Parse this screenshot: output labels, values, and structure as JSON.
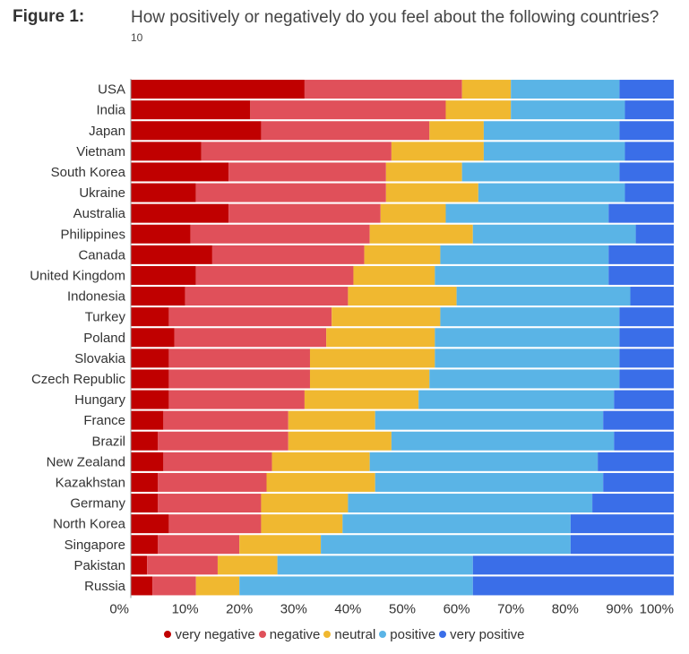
{
  "figure": {
    "label": "Figure 1:",
    "title": "How positively or negatively do you feel about the following countries?",
    "footnote": "10"
  },
  "chart_data": {
    "type": "bar",
    "orientation": "horizontal",
    "stacked": true,
    "normalized": true,
    "xlim": [
      0,
      100
    ],
    "x_ticks": [
      "0%",
      "10%",
      "20%",
      "30%",
      "40%",
      "50%",
      "60%",
      "70%",
      "80%",
      "90%",
      "100%"
    ],
    "legend_position": "bottom",
    "categories": [
      "USA",
      "India",
      "Japan",
      "Vietnam",
      "South Korea",
      "Ukraine",
      "Australia",
      "Philippines",
      "Canada",
      "United Kingdom",
      "Indonesia",
      "Turkey",
      "Poland",
      "Slovakia",
      "Czech Republic",
      "Hungary",
      "France",
      "Brazil",
      "New Zealand",
      "Kazakhstan",
      "Germany",
      "North Korea",
      "Singapore",
      "Pakistan",
      "Russia"
    ],
    "series": [
      {
        "name": "very negative",
        "color": "#c00000",
        "values": [
          32,
          22,
          24,
          13,
          18,
          12,
          18,
          11,
          15,
          12,
          10,
          7,
          8,
          7,
          7,
          7,
          6,
          5,
          6,
          5,
          5,
          7,
          5,
          3,
          4
        ]
      },
      {
        "name": "negative",
        "color": "#e0505a",
        "values": [
          29,
          36,
          31,
          35,
          29,
          35,
          28,
          33,
          28,
          29,
          30,
          30,
          28,
          26,
          26,
          25,
          23,
          24,
          20,
          20,
          19,
          17,
          15,
          13,
          8
        ]
      },
      {
        "name": "neutral",
        "color": "#f0b830",
        "values": [
          9,
          12,
          10,
          17,
          14,
          17,
          12,
          19,
          14,
          15,
          20,
          20,
          20,
          23,
          22,
          21,
          16,
          19,
          18,
          20,
          16,
          15,
          15,
          11,
          8
        ]
      },
      {
        "name": "positive",
        "color": "#5ab4e6",
        "values": [
          20,
          21,
          25,
          26,
          29,
          27,
          30,
          30,
          31,
          32,
          32,
          33,
          34,
          34,
          35,
          36,
          42,
          41,
          42,
          42,
          45,
          42,
          46,
          36,
          43
        ]
      },
      {
        "name": "very positive",
        "color": "#3a6ee8",
        "values": [
          10,
          9,
          10,
          9,
          10,
          9,
          12,
          7,
          12,
          12,
          8,
          10,
          10,
          10,
          10,
          11,
          13,
          11,
          14,
          13,
          15,
          19,
          19,
          37,
          37
        ]
      }
    ]
  }
}
